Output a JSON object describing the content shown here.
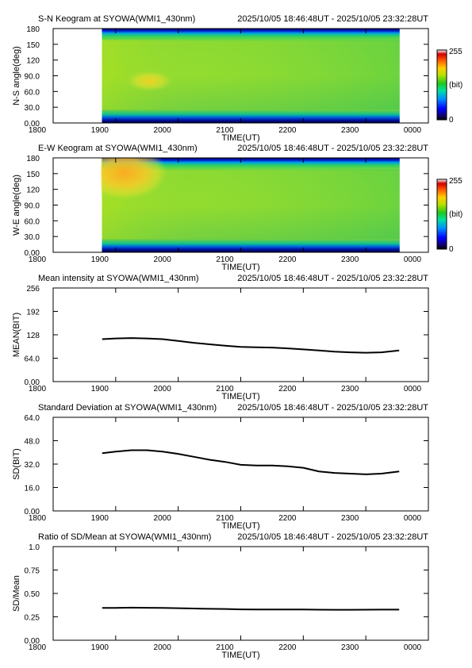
{
  "time_range": "2025/10/05 18:46:48UT - 2025/10/05 23:32:28UT",
  "colors": {
    "line": "#000000",
    "axis": "#000000",
    "gap": "#ffffff"
  },
  "chart_data": [
    {
      "id": "sn",
      "type": "heatmap",
      "title": "S-N Keogram at SYOWA(WMI1_430nm)",
      "xlabel": "TIME(UT)",
      "ylabel": "N-S angle(deg)",
      "x_ticks": [
        "1800",
        "1900",
        "2000",
        "2100",
        "2200",
        "2300",
        "0000"
      ],
      "y_ticks": [
        "0.00",
        "30.0",
        "60.0",
        "90.0",
        "120",
        "150",
        "180"
      ],
      "ylim": [
        0,
        180
      ],
      "data_start": "18:46:48",
      "data_end": "23:32:28",
      "colorbar": {
        "min": "0",
        "max": "255",
        "unit": "(bit)"
      },
      "bright_patch": {
        "from": "19:10",
        "to": "19:55",
        "angle_range": [
          60,
          100
        ]
      }
    },
    {
      "id": "ew",
      "type": "heatmap",
      "title": "E-W Keogram at SYOWA(WMI1_430nm)",
      "xlabel": "TIME(UT)",
      "ylabel": "W-E angle(deg)",
      "x_ticks": [
        "1800",
        "1900",
        "2000",
        "2100",
        "2200",
        "2300",
        "0000"
      ],
      "y_ticks": [
        "0.00",
        "30.0",
        "60.0",
        "90.0",
        "120",
        "150",
        "180"
      ],
      "ylim": [
        0,
        180
      ],
      "data_start": "18:46:48",
      "data_end": "23:32:28",
      "colorbar": {
        "min": "0",
        "max": "255",
        "unit": "(bit)"
      },
      "bright_patch": {
        "from": "18:46",
        "to": "19:50",
        "angle_range": [
          100,
          180
        ]
      }
    },
    {
      "id": "mean",
      "type": "line",
      "title": "Mean intensity at SYOWA(WMI1_430nm)",
      "xlabel": "TIME(UT)",
      "ylabel": "MEAN(BIT)",
      "x_ticks": [
        "1800",
        "1900",
        "2000",
        "2100",
        "2200",
        "2300",
        "0000"
      ],
      "y_ticks": [
        "0.00",
        "64.0",
        "128",
        "192",
        "256"
      ],
      "ylim": [
        0,
        256
      ],
      "series": [
        {
          "x": [
            "18:47",
            "19:00",
            "19:15",
            "19:30",
            "19:45",
            "20:00",
            "20:15",
            "20:30",
            "20:45",
            "21:00",
            "21:15",
            "21:30",
            "21:45",
            "22:00",
            "22:15",
            "22:30",
            "22:45",
            "23:00",
            "23:15",
            "23:32"
          ],
          "values": [
            116,
            118,
            119,
            118,
            116,
            111,
            106,
            102,
            98,
            95,
            94,
            93,
            91,
            88,
            85,
            82,
            80,
            79,
            80,
            85
          ]
        }
      ]
    },
    {
      "id": "sd",
      "type": "line",
      "title": "Standard Deviation at SYOWA(WMI1_430nm)",
      "xlabel": "TIME(UT)",
      "ylabel": "SD(BIT)",
      "x_ticks": [
        "1800",
        "1900",
        "2000",
        "2100",
        "2200",
        "2300",
        "0000"
      ],
      "y_ticks": [
        "0.00",
        "16.0",
        "32.0",
        "48.0",
        "64.0"
      ],
      "ylim": [
        0,
        64
      ],
      "series": [
        {
          "x": [
            "18:47",
            "19:00",
            "19:15",
            "19:30",
            "19:45",
            "20:00",
            "20:15",
            "20:30",
            "20:45",
            "21:00",
            "21:15",
            "21:30",
            "21:45",
            "22:00",
            "22:15",
            "22:30",
            "22:45",
            "23:00",
            "23:15",
            "23:32"
          ],
          "values": [
            39.5,
            40.5,
            41.5,
            41.5,
            40.5,
            39,
            37,
            35,
            33.5,
            31.5,
            31,
            31,
            30.5,
            29.5,
            27,
            26,
            25.5,
            25,
            25.5,
            27
          ]
        }
      ]
    },
    {
      "id": "ratio",
      "type": "line",
      "title": "Ratio of SD/Mean at SYOWA(WMI1_430nm)",
      "xlabel": "TIME(UT)",
      "ylabel": "SD/Mean",
      "x_ticks": [
        "1800",
        "1900",
        "2000",
        "2100",
        "2200",
        "2300",
        "0000"
      ],
      "y_ticks": [
        "0.00",
        "0.25",
        "0.50",
        "0.75",
        "1.0"
      ],
      "ylim": [
        0,
        1
      ],
      "series": [
        {
          "x": [
            "18:47",
            "19:00",
            "19:15",
            "19:30",
            "19:45",
            "20:00",
            "20:15",
            "20:30",
            "20:45",
            "21:00",
            "21:15",
            "21:30",
            "21:45",
            "22:00",
            "22:15",
            "22:30",
            "22:45",
            "23:00",
            "23:15",
            "23:32"
          ],
          "values": [
            0.345,
            0.346,
            0.348,
            0.347,
            0.345,
            0.342,
            0.339,
            0.336,
            0.334,
            0.33,
            0.329,
            0.329,
            0.329,
            0.328,
            0.326,
            0.325,
            0.325,
            0.326,
            0.327,
            0.327
          ]
        }
      ]
    }
  ]
}
